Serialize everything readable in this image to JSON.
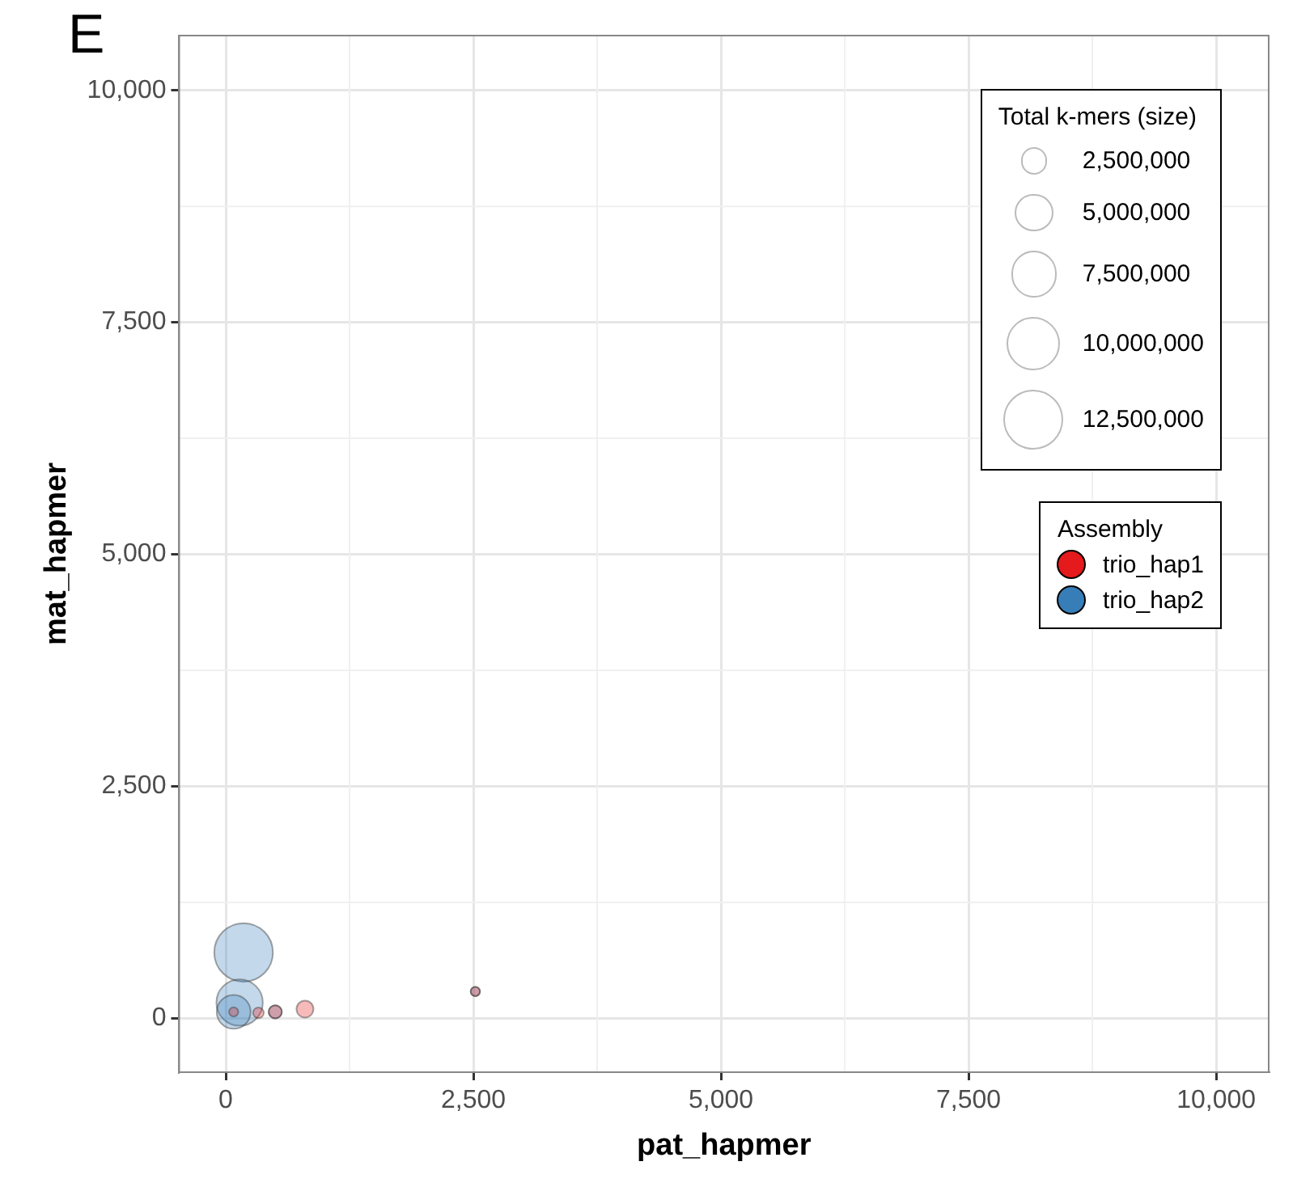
{
  "chart_data": {
    "type": "bubble",
    "xlabel": "pat_hapmer",
    "ylabel": "mat_hapmer",
    "legend_title": "Assembly",
    "annotations": [
      "E",
      "Total k-mers (size)"
    ],
    "size_legend": [
      {
        "value": 2500000,
        "label": "2,500,000"
      },
      {
        "value": 5000000,
        "label": "5,000,000"
      },
      {
        "value": 7500000,
        "label": "7,500,000"
      },
      {
        "value": 10000000,
        "label": "10,000,000"
      },
      {
        "value": 12500000,
        "label": "12,500,000"
      }
    ],
    "xlim": [
      -470,
      10530
    ],
    "ylim": [
      -580,
      10590
    ],
    "xticks": [
      {
        "value": 0,
        "label": "0"
      },
      {
        "value": 2500,
        "label": "2,500"
      },
      {
        "value": 5000,
        "label": "5,000"
      },
      {
        "value": 7500,
        "label": "7,500"
      },
      {
        "value": 10000,
        "label": "10,000"
      }
    ],
    "yticks": [
      {
        "value": 0,
        "label": "0"
      },
      {
        "value": 2500,
        "label": "2,500"
      },
      {
        "value": 5000,
        "label": "5,000"
      },
      {
        "value": 7500,
        "label": "7,500"
      },
      {
        "value": 10000,
        "label": "10,000"
      }
    ],
    "grid": true,
    "legend": "right",
    "marker": "circle",
    "series": [
      {
        "name": "trio_hap1",
        "color": "#e41a1c",
        "x": [
          80,
          330,
          500,
          800,
          2520
        ],
        "values": [
          70,
          60,
          70,
          100,
          290
        ],
        "sizes": [
          300000,
          400000,
          600000,
          1000000,
          300000
        ]
      },
      {
        "name": "trio_hap2",
        "color": "#377eb8",
        "x": [
          180,
          140,
          80,
          500,
          2520
        ],
        "values": [
          710,
          170,
          70,
          70,
          290
        ],
        "sizes": [
          12000000,
          7500000,
          4000000,
          600000,
          300000
        ]
      }
    ]
  }
}
